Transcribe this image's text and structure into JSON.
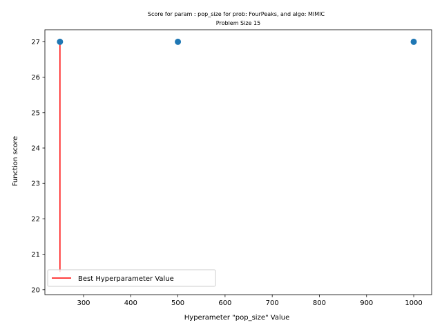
{
  "chart_data": {
    "type": "scatter",
    "title": "Score for param : pop_size for prob: FourPeaks, and algo: MIMIC",
    "subtitle": "Problem Size 15",
    "xlabel": "Hyperameter \"pop_size\" Value",
    "ylabel": "Function score",
    "xlim": [
      218,
      1038
    ],
    "ylim": [
      19.86,
      27.34
    ],
    "x_ticks": [
      300,
      400,
      500,
      600,
      700,
      800,
      900,
      1000
    ],
    "y_ticks": [
      20,
      21,
      22,
      23,
      24,
      25,
      26,
      27
    ],
    "points": [
      {
        "x": 250,
        "y": 27
      },
      {
        "x": 500,
        "y": 27
      },
      {
        "x": 1000,
        "y": 27
      }
    ],
    "point_color": "#1f77b4",
    "best_line": {
      "x": 250,
      "y_from": 20.5,
      "y_to": 27,
      "color": "#ff0000",
      "label": "Best Hyperparameter Value"
    },
    "legend_position": "lower-left",
    "grid": false
  }
}
